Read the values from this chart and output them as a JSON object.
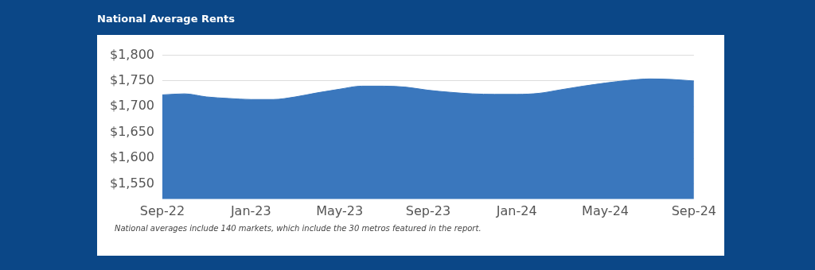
{
  "chart_data": {
    "type": "area",
    "title": "National Average Rents",
    "categories": [
      "Sep-22",
      null,
      null,
      null,
      "Jan-23",
      null,
      null,
      null,
      "May-23",
      null,
      null,
      null,
      "Sep-23",
      null,
      null,
      null,
      "Jan-24",
      null,
      null,
      null,
      "May-24",
      null,
      null,
      null,
      "Sep-24"
    ],
    "series": [
      {
        "color": "#3a77bd",
        "values": [
          1723,
          1725,
          1719,
          1716,
          1714,
          1714,
          1719,
          1727,
          1734,
          1740,
          1740,
          1738,
          1732,
          1728,
          1725,
          1724,
          1724,
          1726,
          1733,
          1740,
          1746,
          1751,
          1754,
          1753,
          1750
        ]
      }
    ],
    "ylim": [
      1520,
      1800
    ],
    "yticks": [
      {
        "value": 1550,
        "label": "$1,550"
      },
      {
        "value": 1600,
        "label": "$1,600"
      },
      {
        "value": 1650,
        "label": "$1,650"
      },
      {
        "value": 1700,
        "label": "$1,700"
      },
      {
        "value": 1750,
        "label": "$1,750"
      },
      {
        "value": 1800,
        "label": "$1,800"
      }
    ],
    "grid": "y",
    "legend": false,
    "annotations": [
      "National averages include 140 markets, which include the 30 metros featured in the report."
    ]
  }
}
